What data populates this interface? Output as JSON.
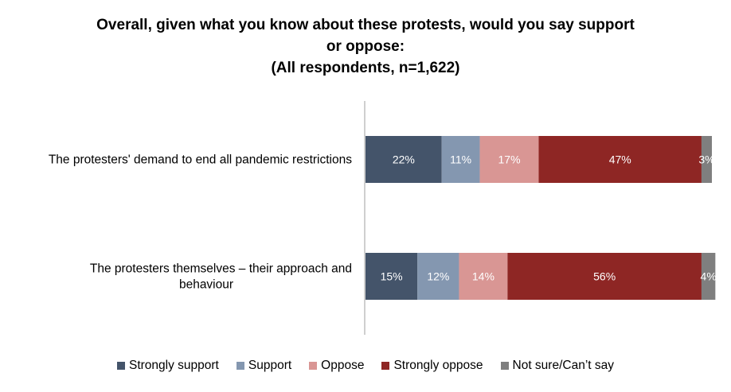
{
  "chart_data": {
    "type": "bar",
    "orientation": "horizontal",
    "stacked": true,
    "title_lines": [
      "Overall, given what you know about these protests, would you say support",
      "or oppose:",
      "(All respondents, n=1,622)"
    ],
    "categories": [
      [
        "The protesters' demand to end all pandemic restrictions"
      ],
      [
        "The protesters themselves – their approach and",
        "behaviour"
      ]
    ],
    "series": [
      {
        "name": "Strongly support",
        "color": "#44546a",
        "values": [
          22,
          15
        ],
        "labels": [
          "22%",
          "15%"
        ]
      },
      {
        "name": "Support",
        "color": "#8497b0",
        "values": [
          11,
          12
        ],
        "labels": [
          "11%",
          "12%"
        ]
      },
      {
        "name": "Oppose",
        "color": "#d99694",
        "values": [
          17,
          14
        ],
        "labels": [
          "17%",
          "14%"
        ]
      },
      {
        "name": "Strongly oppose",
        "color": "#8e2624",
        "values": [
          47,
          56
        ],
        "labels": [
          "47%",
          "56%"
        ]
      },
      {
        "name": "Not sure/Can’t say",
        "color": "#7f7f7f",
        "values": [
          3,
          4
        ],
        "labels": [
          "3%",
          "4%"
        ]
      }
    ],
    "xlim": [
      0,
      100
    ],
    "grid": false,
    "legend_position": "bottom"
  }
}
